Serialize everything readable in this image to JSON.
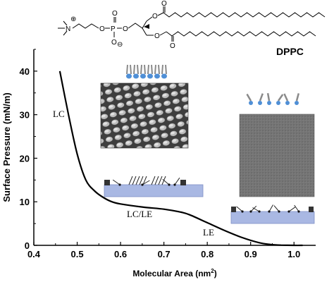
{
  "chart_data": {
    "type": "line",
    "title": "",
    "xlabel": "Molecular Area (nm",
    "xlabel_sup": "2",
    "xlabel_close": ")",
    "ylabel": "Surface Pressure (mN/m)",
    "xlim": [
      0.4,
      1.05
    ],
    "ylim": [
      0,
      45
    ],
    "xticks": [
      "0.4",
      "0.5",
      "0.6",
      "0.7",
      "0.8",
      "0.9",
      "1.0"
    ],
    "yticks": [
      "0",
      "10",
      "20",
      "30",
      "40"
    ],
    "grid": false,
    "series": [
      {
        "x": [
          0.46,
          0.48,
          0.5,
          0.52,
          0.54,
          0.56,
          0.58,
          0.6,
          0.65,
          0.7,
          0.74,
          0.76,
          0.8,
          0.84,
          0.88,
          0.92,
          0.95,
          0.97,
          1.0,
          1.02
        ],
        "y": [
          40,
          30,
          21,
          15,
          12.5,
          11,
          10,
          9.5,
          8.8,
          8.3,
          7.6,
          7.0,
          5.2,
          3.4,
          1.8,
          0.6,
          0.15,
          0.05,
          0,
          0
        ]
      }
    ],
    "annotations": {
      "lc": "LC",
      "lcle": "LC/LE",
      "le": "LE"
    },
    "molecule": {
      "name": "DPPC",
      "n_plus": "N",
      "plus": "⊕",
      "o": "O",
      "p": "P",
      "o_minus": "O",
      "minus": "⊖",
      "double_o": "O"
    }
  },
  "colors": {
    "water": "#a9b8e3",
    "water_edge": "#7f8fc5",
    "micrograph_lc": "#5a5a5a",
    "micrograph_le": "#7a7a7a",
    "head_blue": "#4f8fd6",
    "tail_gray": "#8a8a8a"
  }
}
